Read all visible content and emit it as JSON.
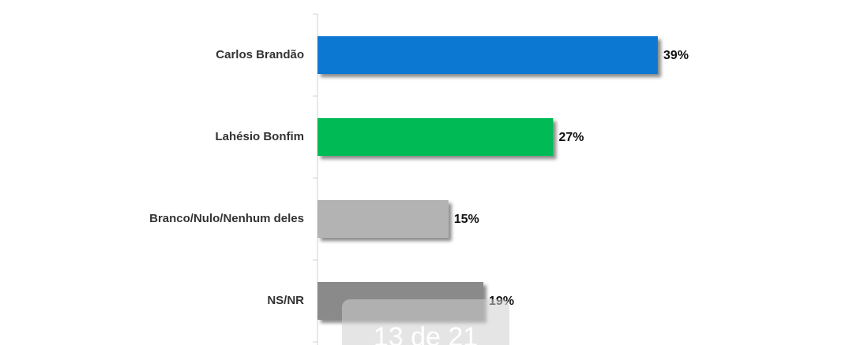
{
  "chart_data": {
    "type": "bar",
    "orientation": "horizontal",
    "categories": [
      "Carlos Brandão",
      "Lahésio Bonfim",
      "Branco/Nulo/Nenhum deles",
      "NS/NR"
    ],
    "values": [
      39,
      27,
      15,
      19
    ],
    "value_labels": [
      "39%",
      "27%",
      "15%",
      "19%"
    ],
    "colors": [
      "#0a78d2",
      "#05bb55",
      "#b3b3b3",
      "#8a8a8a"
    ],
    "xlim": [
      0,
      61
    ]
  },
  "page_indicator": "13 de 21"
}
